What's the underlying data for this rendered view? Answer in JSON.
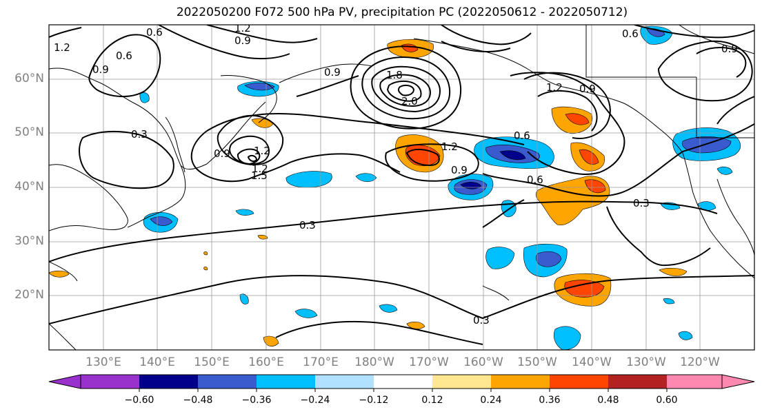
{
  "title": "2022050200 F072 500 hPa PV, precipitation PC (2022050612 - 2022050712)",
  "lat_labels": [
    "60°N",
    "50°N",
    "40°N",
    "30°N",
    "20°N"
  ],
  "lon_labels": [
    "130°E",
    "140°E",
    "150°E",
    "160°E",
    "170°E",
    "180°W",
    "170°W",
    "160°W",
    "150°W",
    "140°W",
    "130°W",
    "120°W"
  ],
  "contour_labels": [
    "0.6",
    "1.2",
    "0.9",
    "1.2",
    "0.9",
    "0.6",
    "0.9",
    "1.2",
    "0.3",
    "0.9",
    "1.2",
    "1.5",
    "1.8",
    "2.0",
    "0.3",
    "0.3",
    "0.3",
    "0.6",
    "0.9",
    "1.2",
    "0.6",
    "0.9",
    "0.6",
    "0.9",
    "1.2"
  ],
  "colorbar": {
    "ticks": [
      "−0.60",
      "−0.48",
      "−0.36",
      "−0.24",
      "−0.12",
      "0.12",
      "0.24",
      "0.36",
      "0.48",
      "0.60"
    ],
    "colors": [
      "#9932cc",
      "#00008b",
      "#3a5bcd",
      "#00bfff",
      "#b0e2ff",
      "#ffffff",
      "#ffe78f",
      "#ffa500",
      "#ff4500",
      "#b22222",
      "#ff88b0"
    ]
  }
}
